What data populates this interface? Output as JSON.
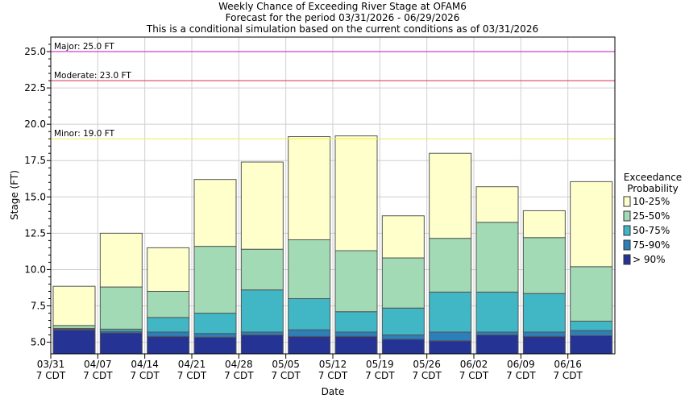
{
  "chart_data": {
    "type": "bar",
    "title_lines": [
      "Weekly Chance of Exceeding River Stage at OFAM6",
      "Forecast for the period 03/31/2026 - 06/29/2026",
      "This is a conditional simulation based on the current conditions as of 03/31/2026"
    ],
    "xlabel": "Date",
    "ylabel": "Stage (FT)",
    "ylim": [
      4.2,
      26.0
    ],
    "yticks": [
      "5.0",
      "7.5",
      "10.0",
      "12.5",
      "15.0",
      "17.5",
      "20.0",
      "22.5",
      "25.0"
    ],
    "xticks": [
      {
        "date": "03/31",
        "tz": "7 CDT"
      },
      {
        "date": "04/07",
        "tz": "7 CDT"
      },
      {
        "date": "04/14",
        "tz": "7 CDT"
      },
      {
        "date": "04/21",
        "tz": "7 CDT"
      },
      {
        "date": "04/28",
        "tz": "7 CDT"
      },
      {
        "date": "05/05",
        "tz": "7 CDT"
      },
      {
        "date": "05/12",
        "tz": "7 CDT"
      },
      {
        "date": "05/19",
        "tz": "7 CDT"
      },
      {
        "date": "05/26",
        "tz": "7 CDT"
      },
      {
        "date": "06/02",
        "tz": "7 CDT"
      },
      {
        "date": "06/09",
        "tz": "7 CDT"
      },
      {
        "date": "06/16",
        "tz": "7 CDT"
      }
    ],
    "thresholds": [
      {
        "label": "Major: 25.0 FT",
        "value": 25.0,
        "color": "#cc44cc"
      },
      {
        "label": "Moderate: 23.0 FT",
        "value": 23.0,
        "color": "#dd4466"
      },
      {
        "label": "Minor: 19.0 FT",
        "value": 19.0,
        "color": "#eeee66"
      }
    ],
    "legend": {
      "title_lines": [
        "Exceedance",
        "Probability"
      ],
      "position": "right",
      "entries": [
        {
          "label": "10-25%",
          "color": "#ffffcc"
        },
        {
          "label": "25-50%",
          "color": "#a1dab4"
        },
        {
          "label": "50-75%",
          "color": "#41b6c4"
        },
        {
          "label": "75-90%",
          "color": "#2c7fb8"
        },
        {
          "label": "> 90%",
          "color": "#253494"
        }
      ]
    },
    "weeks": [
      {
        "start": "03/31",
        "levels": [
          5.85,
          5.9,
          5.95,
          6.15,
          8.85
        ]
      },
      {
        "start": "04/07",
        "levels": [
          5.65,
          5.75,
          5.9,
          8.8,
          12.5
        ]
      },
      {
        "start": "04/14",
        "levels": [
          5.4,
          5.7,
          6.7,
          8.5,
          11.5
        ]
      },
      {
        "start": "04/21",
        "levels": [
          5.35,
          5.6,
          7.0,
          11.6,
          16.2
        ]
      },
      {
        "start": "04/28",
        "levels": [
          5.5,
          5.7,
          8.6,
          11.4,
          17.4
        ]
      },
      {
        "start": "05/05",
        "levels": [
          5.4,
          5.85,
          8.0,
          12.05,
          19.15
        ]
      },
      {
        "start": "05/12",
        "levels": [
          5.4,
          5.7,
          7.1,
          11.3,
          19.2
        ]
      },
      {
        "start": "05/19",
        "levels": [
          5.2,
          5.5,
          7.35,
          10.8,
          13.7
        ]
      },
      {
        "start": "05/26",
        "levels": [
          5.1,
          5.7,
          8.45,
          12.15,
          18.0
        ]
      },
      {
        "start": "06/02",
        "levels": [
          5.5,
          5.7,
          8.45,
          13.25,
          15.7
        ]
      },
      {
        "start": "06/09",
        "levels": [
          5.4,
          5.7,
          8.35,
          12.2,
          14.05
        ]
      },
      {
        "start": "06/16",
        "levels": [
          5.45,
          5.8,
          6.45,
          10.2,
          16.05
        ]
      }
    ]
  }
}
